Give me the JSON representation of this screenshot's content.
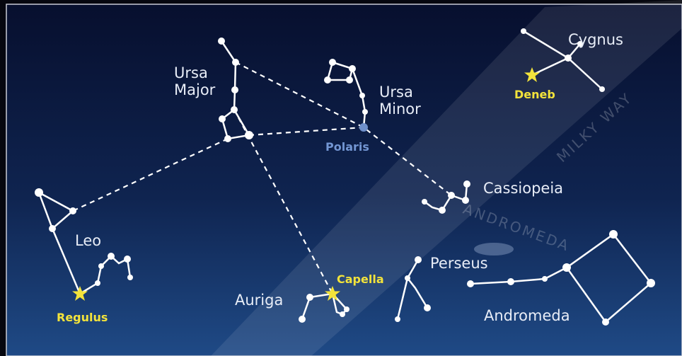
{
  "constellations": [
    {
      "label": "Ursa Major"
    },
    {
      "label": "Ursa Minor"
    },
    {
      "label": "Cygnus"
    },
    {
      "label": "Cassiopeia"
    },
    {
      "label": "Leo"
    },
    {
      "label": "Perseus"
    },
    {
      "label": "Auriga"
    },
    {
      "label": "Andromeda"
    }
  ],
  "stars": [
    {
      "label": "Deneb"
    },
    {
      "label": "Polaris"
    },
    {
      "label": "Capella"
    },
    {
      "label": "Regulus"
    }
  ],
  "band_labels": [
    "MILKY WAY",
    "ANDROMEDA"
  ]
}
